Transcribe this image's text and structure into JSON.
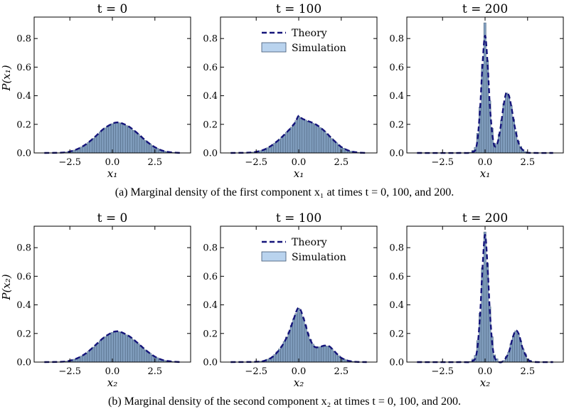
{
  "figure": {
    "caption_a": "(a) Marginal density of the first component x₁ at times t = 0, 100, and 200.",
    "caption_b": "(b) Marginal density of the second component x₂ at times t = 0, 100, and 200."
  },
  "colors": {
    "theory_line": "#14147a",
    "hist_fill": "#7f9cbc",
    "hist_edge": "#3f5670",
    "legend_fill": "#b9d3ee",
    "axis": "#000000"
  },
  "legend": {
    "theory": "Theory",
    "simulation": "Simulation"
  },
  "chart_data": [
    {
      "type": "area",
      "row": "a",
      "title": "t = 0",
      "xlabel": "x₁",
      "ylabel": "P(x₁)",
      "xlim": [
        -4.6,
        4.6
      ],
      "ylim": [
        0,
        0.95
      ],
      "xticks": [
        -2.5,
        0.0,
        2.5
      ],
      "xtick_labels": [
        "−2.5",
        "0.0",
        "2.5"
      ],
      "yticks": [
        0.0,
        0.2,
        0.4,
        0.6,
        0.8
      ],
      "ytick_labels": [
        "0.0",
        "0.2",
        "0.4",
        "0.6",
        "0.8"
      ],
      "legend": false,
      "series": [
        {
          "name": "Theory",
          "x": [
            -4.0,
            -3.0,
            -2.5,
            -2.0,
            -1.5,
            -1.0,
            -0.5,
            0.0,
            0.25,
            0.5,
            1.0,
            1.5,
            2.0,
            2.5,
            3.0,
            3.5,
            4.0
          ],
          "y": [
            0.0,
            0.002,
            0.01,
            0.03,
            0.065,
            0.115,
            0.17,
            0.205,
            0.213,
            0.21,
            0.182,
            0.135,
            0.082,
            0.04,
            0.014,
            0.004,
            0.0
          ]
        }
      ]
    },
    {
      "type": "area",
      "row": "a",
      "title": "t = 100",
      "xlabel": "x₁",
      "ylabel": "",
      "xlim": [
        -4.6,
        4.6
      ],
      "ylim": [
        0,
        0.95
      ],
      "xticks": [
        -2.5,
        0.0,
        2.5
      ],
      "xtick_labels": [
        "−2.5",
        "0.0",
        "2.5"
      ],
      "yticks": [
        0.0,
        0.2,
        0.4,
        0.6,
        0.8
      ],
      "ytick_labels": [
        "0.0",
        "0.2",
        "0.4",
        "0.6",
        "0.8"
      ],
      "legend": true,
      "series": [
        {
          "name": "Theory",
          "x": [
            -4.0,
            -3.0,
            -2.5,
            -2.0,
            -1.5,
            -1.0,
            -0.5,
            -0.2,
            0.0,
            0.2,
            0.5,
            1.0,
            1.5,
            2.0,
            2.5,
            3.0,
            3.5,
            4.0
          ],
          "y": [
            0.0,
            0.002,
            0.008,
            0.025,
            0.06,
            0.11,
            0.17,
            0.215,
            0.26,
            0.24,
            0.225,
            0.2,
            0.155,
            0.095,
            0.042,
            0.014,
            0.003,
            0.0
          ]
        }
      ]
    },
    {
      "type": "area",
      "row": "a",
      "title": "t = 200",
      "xlabel": "x₁",
      "ylabel": "",
      "xlim": [
        -4.6,
        4.6
      ],
      "ylim": [
        0,
        0.95
      ],
      "xticks": [
        -2.5,
        0.0,
        2.5
      ],
      "xtick_labels": [
        "−2.5",
        "0.0",
        "2.5"
      ],
      "yticks": [
        0.0,
        0.2,
        0.4,
        0.6,
        0.8
      ],
      "ytick_labels": [
        "0.0",
        "0.2",
        "0.4",
        "0.6",
        "0.8"
      ],
      "legend": false,
      "series": [
        {
          "name": "Theory",
          "x": [
            -4.0,
            -1.5,
            -0.8,
            -0.5,
            -0.3,
            -0.15,
            0.0,
            0.15,
            0.3,
            0.5,
            0.7,
            0.9,
            1.1,
            1.25,
            1.4,
            1.55,
            1.75,
            2.0,
            2.3,
            2.6,
            4.0
          ],
          "y": [
            0.0,
            0.0,
            0.005,
            0.05,
            0.3,
            0.62,
            0.82,
            0.62,
            0.3,
            0.07,
            0.06,
            0.17,
            0.34,
            0.42,
            0.4,
            0.32,
            0.18,
            0.06,
            0.012,
            0.001,
            0.0
          ]
        }
      ],
      "peak_bar": {
        "x": 0.0,
        "y": 0.91
      }
    },
    {
      "type": "area",
      "row": "b",
      "title": "t = 0",
      "xlabel": "x₂",
      "ylabel": "P(x₂)",
      "xlim": [
        -4.6,
        4.6
      ],
      "ylim": [
        0,
        0.95
      ],
      "xticks": [
        -2.5,
        0.0,
        2.5
      ],
      "xtick_labels": [
        "−2.5",
        "0.0",
        "2.5"
      ],
      "yticks": [
        0.0,
        0.2,
        0.4,
        0.6,
        0.8
      ],
      "ytick_labels": [
        "0.0",
        "0.2",
        "0.4",
        "0.6",
        "0.8"
      ],
      "legend": false,
      "series": [
        {
          "name": "Theory",
          "x": [
            -4.0,
            -3.0,
            -2.5,
            -2.0,
            -1.5,
            -1.0,
            -0.5,
            0.0,
            0.25,
            0.5,
            1.0,
            1.5,
            2.0,
            2.5,
            3.0,
            3.5,
            4.0
          ],
          "y": [
            0.0,
            0.002,
            0.01,
            0.03,
            0.066,
            0.118,
            0.172,
            0.208,
            0.215,
            0.21,
            0.18,
            0.132,
            0.08,
            0.038,
            0.013,
            0.004,
            0.0
          ]
        }
      ]
    },
    {
      "type": "area",
      "row": "b",
      "title": "t = 100",
      "xlabel": "x₂",
      "ylabel": "",
      "xlim": [
        -4.6,
        4.6
      ],
      "ylim": [
        0,
        0.95
      ],
      "xticks": [
        -2.5,
        0.0,
        2.5
      ],
      "xtick_labels": [
        "−2.5",
        "0.0",
        "2.5"
      ],
      "yticks": [
        0.0,
        0.2,
        0.4,
        0.6,
        0.8
      ],
      "ytick_labels": [
        "0.0",
        "0.2",
        "0.4",
        "0.6",
        "0.8"
      ],
      "legend": true,
      "series": [
        {
          "name": "Theory",
          "x": [
            -4.0,
            -2.5,
            -2.0,
            -1.5,
            -1.0,
            -0.6,
            -0.3,
            0.0,
            0.3,
            0.6,
            0.9,
            1.2,
            1.5,
            1.8,
            2.1,
            2.5,
            3.0,
            3.5,
            4.0
          ],
          "y": [
            0.0,
            0.002,
            0.01,
            0.04,
            0.11,
            0.2,
            0.3,
            0.38,
            0.3,
            0.18,
            0.11,
            0.105,
            0.115,
            0.11,
            0.075,
            0.03,
            0.007,
            0.001,
            0.0
          ]
        }
      ]
    },
    {
      "type": "area",
      "row": "b",
      "title": "t = 200",
      "xlabel": "x₂",
      "ylabel": "",
      "xlim": [
        -4.6,
        4.6
      ],
      "ylim": [
        0,
        0.95
      ],
      "xticks": [
        -2.5,
        0.0,
        2.5
      ],
      "xtick_labels": [
        "−2.5",
        "0.0",
        "2.5"
      ],
      "yticks": [
        0.0,
        0.2,
        0.4,
        0.6,
        0.8
      ],
      "ytick_labels": [
        "0.0",
        "0.2",
        "0.4",
        "0.6",
        "0.8"
      ],
      "legend": false,
      "series": [
        {
          "name": "Theory",
          "x": [
            -4.0,
            -1.5,
            -0.8,
            -0.5,
            -0.3,
            -0.15,
            0.0,
            0.15,
            0.3,
            0.5,
            0.8,
            1.1,
            1.4,
            1.6,
            1.8,
            2.0,
            2.2,
            2.5,
            2.8,
            4.0
          ],
          "y": [
            0.0,
            0.0,
            0.005,
            0.06,
            0.32,
            0.66,
            0.89,
            0.66,
            0.32,
            0.06,
            0.002,
            0.01,
            0.07,
            0.16,
            0.22,
            0.19,
            0.1,
            0.025,
            0.002,
            0.0
          ]
        }
      ],
      "peak_bar": {
        "x": 0.0,
        "y": 0.91
      }
    }
  ]
}
